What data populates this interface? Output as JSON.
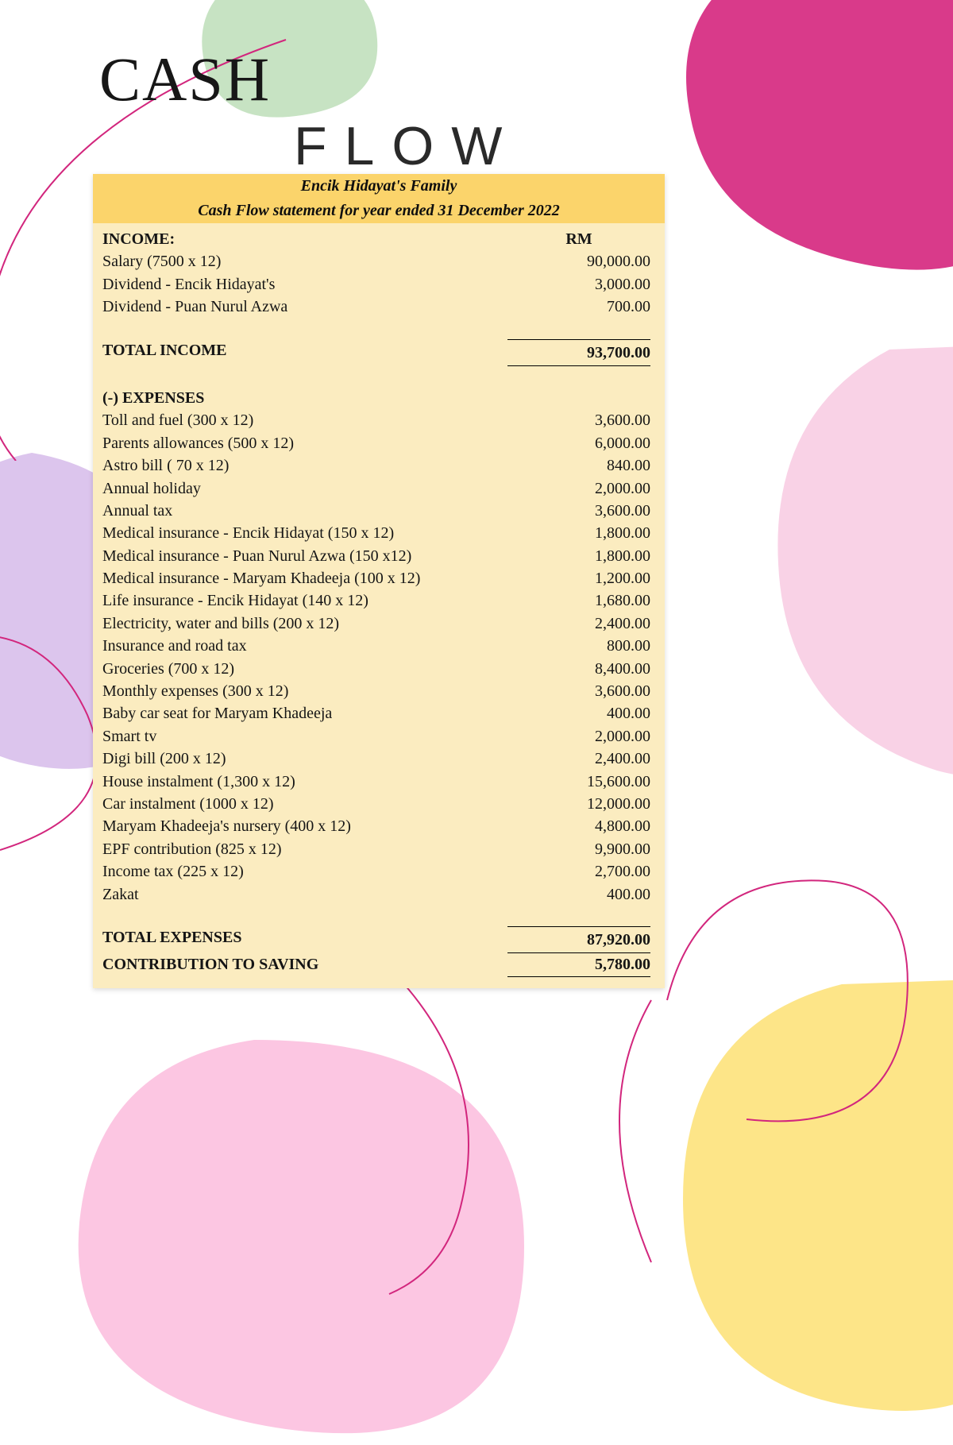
{
  "title": {
    "line1": "CASH",
    "line2": "FLOW"
  },
  "header": {
    "family": "Encik Hidayat's Family",
    "subtitle": "Cash Flow statement for year ended 31 December 2022"
  },
  "columns": {
    "currency": "RM"
  },
  "sections": {
    "income": {
      "heading": "INCOME:",
      "rows": [
        {
          "label": "Salary (7500 x 12)",
          "value": "90,000.00"
        },
        {
          "label": "Dividend - Encik Hidayat's",
          "value": "3,000.00"
        },
        {
          "label": "Dividend - Puan Nurul Azwa",
          "value": "700.00"
        }
      ],
      "total_label": "TOTAL INCOME",
      "total_value": "93,700.00"
    },
    "expenses": {
      "heading": "(-) EXPENSES",
      "rows": [
        {
          "label": "Toll and fuel (300 x 12)",
          "value": "3,600.00"
        },
        {
          "label": "Parents allowances (500 x 12)",
          "value": "6,000.00"
        },
        {
          "label": "Astro bill ( 70 x 12)",
          "value": "840.00"
        },
        {
          "label": "Annual holiday",
          "value": "2,000.00"
        },
        {
          "label": "Annual tax",
          "value": "3,600.00"
        },
        {
          "label": "Medical insurance - Encik Hidayat (150 x 12)",
          "value": "1,800.00"
        },
        {
          "label": "Medical insurance - Puan Nurul Azwa (150 x12)",
          "value": "1,800.00"
        },
        {
          "label": "Medical insurance - Maryam Khadeeja (100 x 12)",
          "value": "1,200.00"
        },
        {
          "label": "Life insurance - Encik Hidayat (140 x 12)",
          "value": "1,680.00"
        },
        {
          "label": "Electricity, water and bills (200 x 12)",
          "value": "2,400.00"
        },
        {
          "label": "Insurance and road tax",
          "value": "800.00"
        },
        {
          "label": "Groceries (700 x 12)",
          "value": "8,400.00"
        },
        {
          "label": "Monthly expenses (300 x 12)",
          "value": "3,600.00"
        },
        {
          "label": "Baby car seat for Maryam Khadeeja",
          "value": "400.00"
        },
        {
          "label": "Smart tv",
          "value": "2,000.00"
        },
        {
          "label": "Digi bill (200 x 12)",
          "value": "2,400.00"
        },
        {
          "label": "House instalment (1,300 x 12)",
          "value": "15,600.00"
        },
        {
          "label": "Car instalment (1000 x 12)",
          "value": "12,000.00"
        },
        {
          "label": "Maryam Khadeeja's nursery (400 x 12)",
          "value": "4,800.00"
        },
        {
          "label": "EPF contribution (825 x 12)",
          "value": "9,900.00"
        },
        {
          "label": "Income tax (225 x 12)",
          "value": "2,700.00"
        },
        {
          "label": "Zakat",
          "value": "400.00"
        }
      ],
      "total_label": "TOTAL EXPENSES",
      "total_value": "87,920.00"
    },
    "contribution": {
      "label": "CONTRIBUTION TO SAVING",
      "value": "5,780.00"
    }
  },
  "style": {
    "page_bg": "#ffffff",
    "table_bg": "#fbecc0",
    "header_bg": "#fbd46b",
    "text_color": "#151515",
    "font_body_size": 20,
    "blobs": {
      "green": "#c7e3c3",
      "magenta": "#d93a8a",
      "lilac": "#dcc5ed",
      "pink_light": "#f9d2e6",
      "pink_blob": "#fcc6e2",
      "yellow": "#fde588",
      "stroke": "#d2267d"
    }
  }
}
